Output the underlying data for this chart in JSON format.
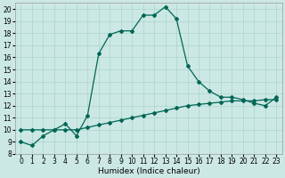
{
  "title": "",
  "xlabel": "Humidex (Indice chaleur)",
  "ylabel": "",
  "background_color": "#cce8e4",
  "grid_color": "#aad4cc",
  "line_color": "#006655",
  "xlim": [
    -0.5,
    23.5
  ],
  "ylim": [
    8,
    20.5
  ],
  "xticks": [
    0,
    1,
    2,
    3,
    4,
    5,
    6,
    7,
    8,
    9,
    10,
    11,
    12,
    13,
    14,
    15,
    16,
    17,
    18,
    19,
    20,
    21,
    22,
    23
  ],
  "yticks": [
    8,
    9,
    10,
    11,
    12,
    13,
    14,
    15,
    16,
    17,
    18,
    19,
    20
  ],
  "curve1_x": [
    0,
    1,
    2,
    3,
    4,
    5,
    6,
    7,
    8,
    9,
    10,
    11,
    12,
    13,
    14,
    15,
    16,
    17,
    18,
    19,
    20,
    21,
    22,
    23
  ],
  "curve1_y": [
    9.0,
    8.7,
    9.5,
    10.0,
    10.5,
    9.5,
    11.2,
    16.3,
    17.9,
    18.2,
    18.2,
    19.5,
    19.5,
    20.2,
    19.2,
    15.3,
    14.0,
    13.2,
    12.7,
    12.7,
    12.5,
    12.2,
    12.0,
    12.7
  ],
  "curve2_x": [
    0,
    1,
    2,
    3,
    4,
    5,
    6,
    7,
    8,
    9,
    10,
    11,
    12,
    13,
    14,
    15,
    16,
    17,
    18,
    19,
    20,
    21,
    22,
    23
  ],
  "curve2_y": [
    10.0,
    10.0,
    10.0,
    10.0,
    10.0,
    10.0,
    10.2,
    10.4,
    10.6,
    10.8,
    11.0,
    11.2,
    11.4,
    11.6,
    11.8,
    12.0,
    12.1,
    12.2,
    12.3,
    12.4,
    12.4,
    12.4,
    12.5,
    12.5
  ],
  "marker": "D",
  "markersize": 2.0,
  "linewidth": 0.9,
  "label_fontsize": 6.5,
  "tick_fontsize": 5.5
}
